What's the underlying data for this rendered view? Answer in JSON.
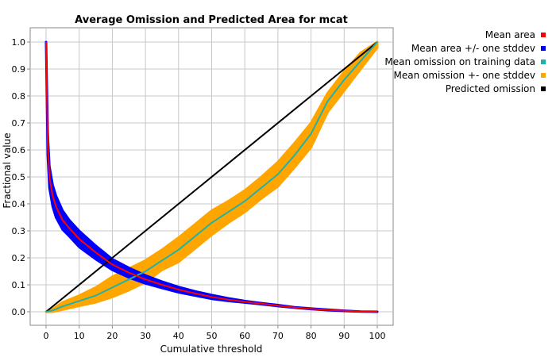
{
  "chart_data": {
    "type": "line",
    "title": "Average Omission and Predicted Area for mcat",
    "xlabel": "Cumulative threshold",
    "ylabel": "Fractional value",
    "xlim": [
      0,
      100
    ],
    "ylim": [
      0,
      1
    ],
    "xticks": [
      "0",
      "10",
      "20",
      "30",
      "40",
      "50",
      "60",
      "70",
      "80",
      "90",
      "100"
    ],
    "yticks": [
      "0.0",
      "0.1",
      "0.2",
      "0.3",
      "0.4",
      "0.5",
      "0.6",
      "0.7",
      "0.8",
      "0.9",
      "1.0"
    ],
    "grid": true,
    "legend_position": "top-right",
    "legend": [
      {
        "label": "Mean area",
        "color": "#ff0000"
      },
      {
        "label": "Mean area +/- one stddev",
        "color": "#0000ff"
      },
      {
        "label": "Mean omission on training data",
        "color": "#20b2aa"
      },
      {
        "label": "Mean omission +- one stddev",
        "color": "#ffa500"
      },
      {
        "label": "Predicted omission",
        "color": "#000000"
      }
    ],
    "series": [
      {
        "name": "Mean area",
        "color": "#ff0000",
        "x": [
          0,
          0.5,
          1,
          2,
          3,
          5,
          7,
          10,
          15,
          20,
          25,
          30,
          35,
          40,
          45,
          50,
          55,
          60,
          65,
          70,
          75,
          80,
          85,
          90,
          95,
          100
        ],
        "y": [
          1.0,
          0.62,
          0.5,
          0.43,
          0.39,
          0.34,
          0.31,
          0.27,
          0.22,
          0.175,
          0.145,
          0.12,
          0.1,
          0.082,
          0.068,
          0.055,
          0.045,
          0.037,
          0.03,
          0.023,
          0.016,
          0.011,
          0.007,
          0.004,
          0.001,
          0.0
        ]
      },
      {
        "name": "Mean area +/- one stddev",
        "color": "#0000ff",
        "x": [
          0,
          0.5,
          1,
          2,
          3,
          5,
          7,
          10,
          15,
          20,
          25,
          30,
          35,
          40,
          45,
          50,
          55,
          60,
          65,
          70,
          75,
          80,
          85,
          90,
          95,
          100
        ],
        "upper": [
          1.0,
          0.66,
          0.54,
          0.47,
          0.43,
          0.375,
          0.34,
          0.3,
          0.245,
          0.195,
          0.163,
          0.135,
          0.112,
          0.092,
          0.076,
          0.062,
          0.05,
          0.04,
          0.032,
          0.025,
          0.017,
          0.012,
          0.008,
          0.004,
          0.001,
          0.0
        ],
        "lower": [
          1.0,
          0.58,
          0.46,
          0.39,
          0.35,
          0.305,
          0.28,
          0.24,
          0.195,
          0.155,
          0.127,
          0.105,
          0.088,
          0.072,
          0.06,
          0.048,
          0.04,
          0.034,
          0.028,
          0.021,
          0.015,
          0.01,
          0.006,
          0.003,
          0.001,
          0.0
        ]
      },
      {
        "name": "Mean omission on training data",
        "color": "#20b2aa",
        "x": [
          0,
          2,
          5,
          10,
          15,
          20,
          25,
          30,
          35,
          40,
          45,
          50,
          55,
          60,
          65,
          70,
          75,
          80,
          85,
          90,
          95,
          100
        ],
        "y": [
          0.0,
          0.005,
          0.02,
          0.04,
          0.06,
          0.09,
          0.12,
          0.15,
          0.19,
          0.23,
          0.28,
          0.33,
          0.37,
          0.41,
          0.46,
          0.51,
          0.58,
          0.66,
          0.78,
          0.86,
          0.93,
          1.0
        ]
      },
      {
        "name": "Mean omission +- one stddev",
        "color": "#ffa500",
        "x": [
          0,
          2,
          5,
          10,
          15,
          20,
          25,
          30,
          35,
          40,
          45,
          50,
          55,
          60,
          65,
          70,
          75,
          80,
          85,
          90,
          95,
          100
        ],
        "upper": [
          0.0,
          0.01,
          0.035,
          0.06,
          0.09,
          0.13,
          0.16,
          0.19,
          0.23,
          0.275,
          0.325,
          0.375,
          0.41,
          0.45,
          0.5,
          0.555,
          0.625,
          0.7,
          0.81,
          0.89,
          0.96,
          1.0
        ],
        "lower": [
          0.0,
          0.0,
          0.008,
          0.022,
          0.035,
          0.055,
          0.08,
          0.11,
          0.155,
          0.185,
          0.235,
          0.285,
          0.33,
          0.37,
          0.42,
          0.465,
          0.535,
          0.61,
          0.74,
          0.82,
          0.9,
          0.98
        ]
      },
      {
        "name": "Predicted omission",
        "color": "#000000",
        "x": [
          0,
          100
        ],
        "y": [
          0,
          1
        ]
      }
    ]
  }
}
